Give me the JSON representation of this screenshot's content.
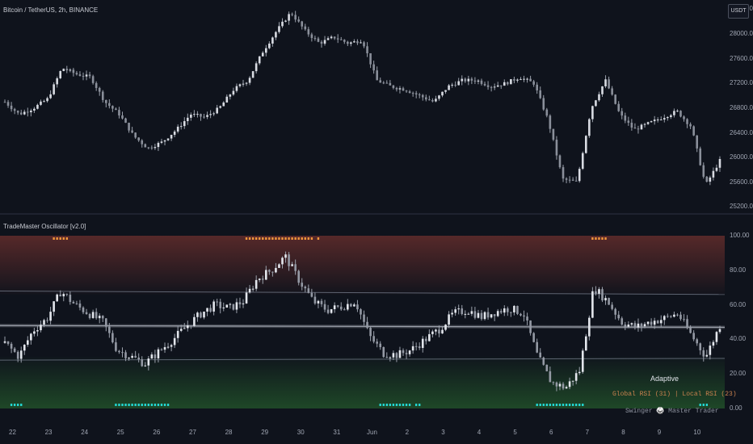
{
  "header": {
    "symbol_title": "Bitcoin / TetherUS, 2h, BINANCE",
    "currency_button": "USDT"
  },
  "indicator": {
    "title": "TradeMaster Oscillator [v2.0]",
    "mode_label": "Adaptive",
    "rsi_label": "Global RSI (31) | Local RSI (23)",
    "footer_label": "Swinger 🥋 Master Trader"
  },
  "price_axis": [
    "28400.00",
    "28000.00",
    "27600.00",
    "27200.00",
    "26800.00",
    "26400.00",
    "26000.00",
    "25600.00",
    "25200.00"
  ],
  "osc_axis": [
    "100.00",
    "80.00",
    "60.00",
    "40.00",
    "20.00",
    "0.00"
  ],
  "time_axis": [
    "22",
    "23",
    "24",
    "25",
    "26",
    "27",
    "28",
    "29",
    "30",
    "31",
    "Jun",
    "2",
    "3",
    "4",
    "5",
    "6",
    "7",
    "8",
    "9",
    "10"
  ],
  "colors": {
    "background": "#0f131c",
    "candle": "#d8dbe2",
    "overbought_zone": "#5a2a2a",
    "oversold_zone": "#1f4a28",
    "ob_marker": "#f0953c",
    "os_marker": "#23d6d0",
    "rsi_label_color": "#c9824e"
  },
  "chart_data": [
    {
      "type": "candlestick",
      "title": "Bitcoin / TetherUS, 2h, BINANCE",
      "y_ticks": [
        25200,
        25600,
        26000,
        26400,
        26800,
        27200,
        27600,
        28000,
        28400
      ],
      "ylim": [
        25100,
        28550
      ],
      "x_ticks": [
        "22",
        "23",
        "24",
        "25",
        "26",
        "27",
        "28",
        "29",
        "30",
        "31",
        "Jun",
        "2",
        "3",
        "4",
        "5",
        "6",
        "7",
        "8",
        "9",
        "10"
      ],
      "close_path": [
        26900,
        26700,
        26800,
        26950,
        27450,
        27350,
        27300,
        26900,
        26700,
        26350,
        26150,
        26250,
        26450,
        26700,
        26650,
        26800,
        27100,
        27250,
        27700,
        28050,
        28350,
        28050,
        27850,
        27950,
        27850,
        27900,
        27250,
        27150,
        27100,
        27000,
        26900,
        27150,
        27250,
        27250,
        27150,
        27200,
        27300,
        27200,
        26600,
        25650,
        25600,
        26800,
        27250,
        26700,
        26450,
        26550,
        26650,
        26750,
        26500,
        25550,
        25950
      ]
    },
    {
      "type": "line",
      "title": "TradeMaster Oscillator [v2.0]",
      "y_ticks": [
        0,
        20,
        40,
        60,
        80,
        100
      ],
      "ylim": [
        0,
        100
      ],
      "upper_band": [
        68,
        66
      ],
      "mid_line": [
        48,
        47
      ],
      "lower_band": [
        28,
        29
      ],
      "oscillator_path": [
        38,
        30,
        45,
        52,
        68,
        60,
        55,
        50,
        34,
        30,
        26,
        33,
        40,
        48,
        55,
        60,
        58,
        62,
        75,
        80,
        88,
        74,
        62,
        57,
        59,
        62,
        42,
        32,
        31,
        34,
        40,
        46,
        55,
        57,
        53,
        56,
        58,
        55,
        30,
        15,
        12,
        22,
        70,
        62,
        50,
        47,
        50,
        52,
        55,
        42,
        30,
        48
      ]
    }
  ]
}
